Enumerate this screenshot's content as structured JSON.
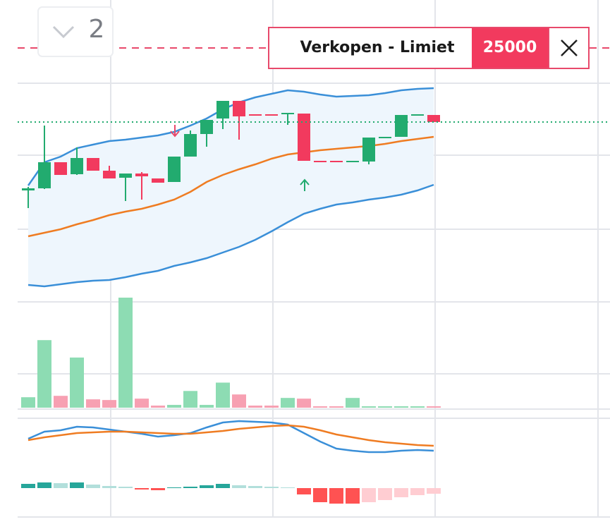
{
  "collapsed_count": "2",
  "order": {
    "label": "Verkopen - Limiet",
    "price": 25000
  },
  "chart_data": [
    {
      "type": "candlestick",
      "ylim": [
        70,
        400
      ],
      "up_color": "#22ab6f",
      "down_color": "#f23a5e",
      "open": [
        230,
        233,
        270,
        253,
        276,
        258,
        248,
        254,
        247,
        242,
        278,
        310,
        332,
        357,
        338,
        338,
        338,
        339,
        272,
        272,
        271,
        271,
        305,
        306,
        338,
        337
      ],
      "close": [
        233,
        270,
        252,
        276,
        258,
        247,
        254,
        250,
        241,
        278,
        310,
        330,
        357,
        335,
        337,
        337,
        340,
        272,
        271,
        271,
        272,
        305,
        306,
        337,
        338,
        327
      ],
      "high": [
        235,
        322,
        270,
        291,
        276,
        265,
        254,
        256,
        247,
        278,
        315,
        330,
        357,
        357,
        338,
        338,
        340,
        339,
        272,
        272,
        272,
        305,
        306,
        337,
        338,
        337
      ],
      "low": [
        205,
        232,
        252,
        252,
        258,
        247,
        215,
        217,
        241,
        242,
        278,
        292,
        317,
        302,
        337,
        337,
        323,
        272,
        271,
        271,
        271,
        267,
        305,
        306,
        337,
        327
      ],
      "bands": [
        {
          "color": "#3a8fd8",
          "values": [
            237,
            270,
            278,
            290,
            295,
            300,
            302,
            305,
            308,
            313,
            322,
            332,
            345,
            355,
            362,
            367,
            372,
            370,
            366,
            363,
            364,
            365,
            368,
            372,
            374,
            375
          ]
        },
        {
          "color": "#ef7c22",
          "values": [
            165,
            170,
            175,
            182,
            188,
            195,
            200,
            204,
            210,
            217,
            228,
            242,
            252,
            260,
            267,
            275,
            281,
            284,
            287,
            289,
            291,
            293,
            296,
            300,
            303,
            306
          ]
        },
        {
          "color": "#3a8fd8",
          "values": [
            96,
            94,
            97,
            100,
            102,
            103,
            107,
            112,
            116,
            123,
            128,
            134,
            142,
            150,
            160,
            172,
            185,
            197,
            204,
            210,
            213,
            217,
            220,
            224,
            230,
            238
          ]
        }
      ],
      "band_fill": "#eef6fd"
    },
    {
      "type": "bar",
      "ylim": [
        0,
        160
      ],
      "up_color": "#8ddcb3",
      "down_color": "#f7a0b2",
      "values": [
        15,
        97,
        17,
        72,
        12,
        11,
        158,
        13,
        3,
        4,
        24,
        4,
        36,
        19,
        3,
        3,
        14,
        13,
        2,
        2,
        14,
        2,
        2,
        2,
        2,
        2
      ]
    },
    {
      "type": "macd",
      "ylim": [
        -32,
        108
      ],
      "y2lim": [
        -40,
        100
      ],
      "series": [
        {
          "color": "#3a8fd8",
          "values": [
            78,
            88,
            90,
            95,
            94,
            91,
            88,
            85,
            81,
            83,
            86,
            94,
            101,
            103,
            102,
            101,
            98,
            86,
            74,
            64,
            61,
            59,
            59,
            61,
            62,
            61
          ]
        },
        {
          "color": "#ef7c22",
          "values": [
            76,
            80,
            83,
            86,
            87,
            88,
            88,
            87,
            86,
            85,
            85,
            87,
            89,
            92,
            94,
            96,
            97,
            95,
            90,
            84,
            80,
            76,
            73,
            71,
            69,
            68
          ]
        },
        {
          "axis": "y2",
          "values": [
            6,
            8,
            7,
            8,
            5,
            3,
            2,
            -2,
            -3,
            1,
            2,
            4,
            6,
            4,
            3,
            2,
            1,
            -9,
            -20,
            -22,
            -22,
            -20,
            -17,
            -13,
            -10,
            -8
          ]
        }
      ]
    }
  ]
}
